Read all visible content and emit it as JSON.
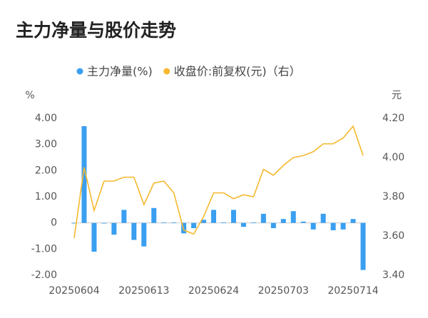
{
  "chart_data": {
    "type": "combo",
    "title": "主力净量与股价走势",
    "y_label": "%",
    "y2_label": "元",
    "categories": [
      "20250604",
      null,
      null,
      null,
      null,
      null,
      null,
      "20250613",
      null,
      null,
      null,
      null,
      null,
      null,
      "20250624",
      null,
      null,
      null,
      null,
      null,
      null,
      "20250703",
      null,
      null,
      null,
      null,
      null,
      null,
      "20250714",
      null
    ],
    "series": [
      {
        "name": "主力净量(%)",
        "type": "bar",
        "color": "#3a9ff0",
        "values": [
          -0.02,
          3.7,
          -1.1,
          -0.02,
          -0.45,
          0.5,
          -0.65,
          -0.9,
          0.57,
          0.02,
          0.02,
          -0.4,
          -0.2,
          0.12,
          0.5,
          0.02,
          0.5,
          -0.15,
          0.02,
          0.35,
          -0.2,
          0.15,
          0.45,
          0.05,
          -0.25,
          0.35,
          -0.28,
          -0.25,
          0.15,
          -1.8
        ]
      },
      {
        "name": "收盘价:前复权(元)（右）",
        "type": "line",
        "axis": "y2",
        "color": "#f5b82e",
        "values": [
          3.59,
          3.95,
          3.73,
          3.88,
          3.88,
          3.9,
          3.9,
          3.76,
          3.87,
          3.88,
          3.82,
          3.63,
          3.61,
          3.7,
          3.82,
          3.82,
          3.79,
          3.81,
          3.8,
          3.94,
          3.91,
          3.96,
          4.0,
          4.01,
          4.03,
          4.07,
          4.07,
          4.1,
          4.16,
          4.01
        ]
      }
    ],
    "ylim": [
      -2,
      4
    ],
    "yticks": [
      {
        "value": 4,
        "label": "4.00"
      },
      {
        "value": 3,
        "label": "3.00"
      },
      {
        "value": 2,
        "label": "2.00"
      },
      {
        "value": 1,
        "label": "1.00"
      },
      0,
      {
        "value": -1,
        "label": "-1.00"
      },
      {
        "value": -2,
        "label": "-2.00"
      }
    ],
    "y2lim": [
      3.4,
      4.2
    ],
    "y2ticks": [
      {
        "value": 4.2,
        "label": "4.20"
      },
      {
        "value": 4.0,
        "label": "4.00"
      },
      {
        "value": 3.8,
        "label": "3.80"
      },
      {
        "value": 3.6,
        "label": "3.60"
      },
      {
        "value": 3.4,
        "label": "3.40"
      }
    ],
    "legend": "top"
  }
}
